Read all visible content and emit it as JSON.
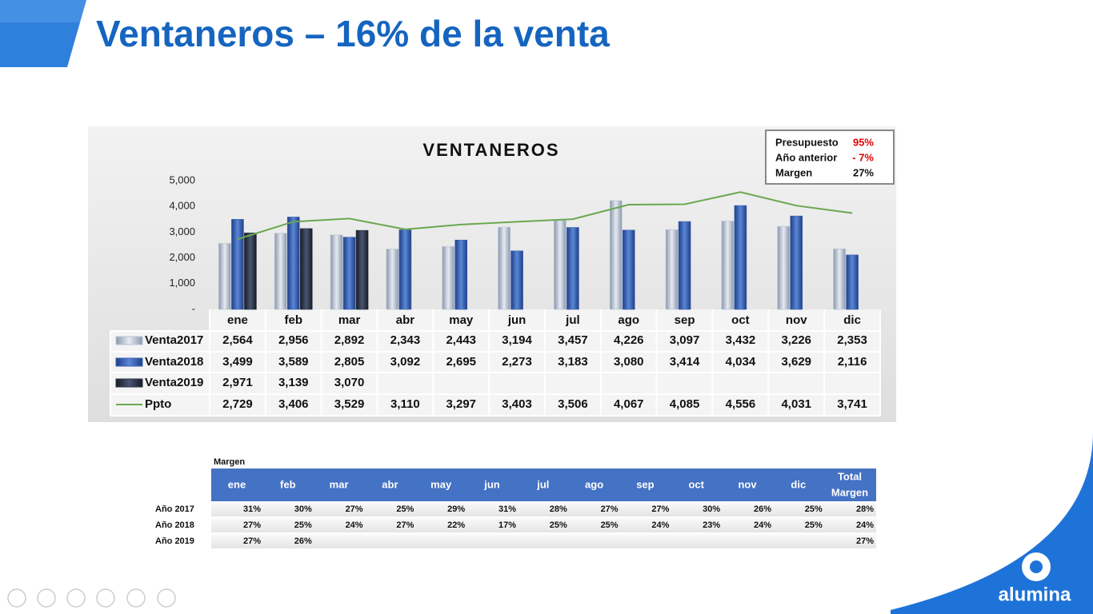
{
  "title": "Ventaneros – 16% de la venta",
  "chart_data": {
    "type": "bar",
    "title": "VENTANEROS",
    "categories": [
      "ene",
      "feb",
      "mar",
      "abr",
      "may",
      "jun",
      "jul",
      "ago",
      "sep",
      "oct",
      "nov",
      "dic"
    ],
    "ylim": [
      0,
      5000
    ],
    "yticks": [
      {
        "value": 0,
        "label": "-"
      },
      {
        "value": 1000,
        "label": "1,000"
      },
      {
        "value": 2000,
        "label": "2,000"
      },
      {
        "value": 3000,
        "label": "3,000"
      },
      {
        "value": 4000,
        "label": "4,000"
      },
      {
        "value": 5000,
        "label": "5,000"
      }
    ],
    "series": [
      {
        "name": "Venta2017",
        "type": "bar",
        "color": "#b9c3d3",
        "values": [
          2564,
          2956,
          2892,
          2343,
          2443,
          3194,
          3457,
          4226,
          3097,
          3432,
          3226,
          2353
        ],
        "value_labels": [
          "2,564",
          "2,956",
          "2,892",
          "2,343",
          "2,443",
          "3,194",
          "3,457",
          "4,226",
          "3,097",
          "3,432",
          "3,226",
          "2,353"
        ]
      },
      {
        "name": "Venta2018",
        "type": "bar",
        "color": "#3c64b4",
        "values": [
          3499,
          3589,
          2805,
          3092,
          2695,
          2273,
          3183,
          3080,
          3414,
          4034,
          3629,
          2116
        ],
        "value_labels": [
          "3,499",
          "3,589",
          "2,805",
          "3,092",
          "2,695",
          "2,273",
          "3,183",
          "3,080",
          "3,414",
          "4,034",
          "3,629",
          "2,116"
        ]
      },
      {
        "name": "Venta2019",
        "type": "bar",
        "color": "#2b3346",
        "values": [
          2971,
          3139,
          3070,
          null,
          null,
          null,
          null,
          null,
          null,
          null,
          null,
          null
        ],
        "value_labels": [
          "2,971",
          "3,139",
          "3,070",
          null,
          null,
          null,
          null,
          null,
          null,
          null,
          null,
          null
        ]
      },
      {
        "name": "Ppto",
        "type": "line",
        "color": "#6aa84f",
        "values": [
          2729,
          3406,
          3529,
          3110,
          3297,
          3403,
          3506,
          4067,
          4085,
          4556,
          4031,
          3741
        ],
        "value_labels": [
          "2,729",
          "3,406",
          "3,529",
          "3,110",
          "3,297",
          "3,403",
          "3,506",
          "4,067",
          "4,085",
          "4,556",
          "4,031",
          "3,741"
        ]
      }
    ]
  },
  "summary": [
    {
      "label": "Presupuesto",
      "value": "95%"
    },
    {
      "label": "Año anterior",
      "value": "- 7%"
    },
    {
      "label": "Margen",
      "value": "27%"
    }
  ],
  "margin_table": {
    "title": "Margen",
    "columns": [
      "ene",
      "feb",
      "mar",
      "abr",
      "may",
      "jun",
      "jul",
      "ago",
      "sep",
      "oct",
      "nov",
      "dic"
    ],
    "total_header": [
      "Total",
      "Margen"
    ],
    "rows": [
      {
        "label": "Año 2017",
        "values": [
          "31%",
          "30%",
          "27%",
          "25%",
          "29%",
          "31%",
          "28%",
          "27%",
          "27%",
          "30%",
          "26%",
          "25%"
        ],
        "total": "28%"
      },
      {
        "label": "Año 2018",
        "values": [
          "27%",
          "25%",
          "24%",
          "27%",
          "22%",
          "17%",
          "25%",
          "25%",
          "24%",
          "23%",
          "24%",
          "25%"
        ],
        "total": "24%"
      },
      {
        "label": "Año 2019",
        "values": [
          "27%",
          "26%",
          null,
          null,
          null,
          null,
          null,
          null,
          null,
          null,
          null,
          null
        ],
        "total": "27%"
      }
    ]
  },
  "logo": "alumina"
}
